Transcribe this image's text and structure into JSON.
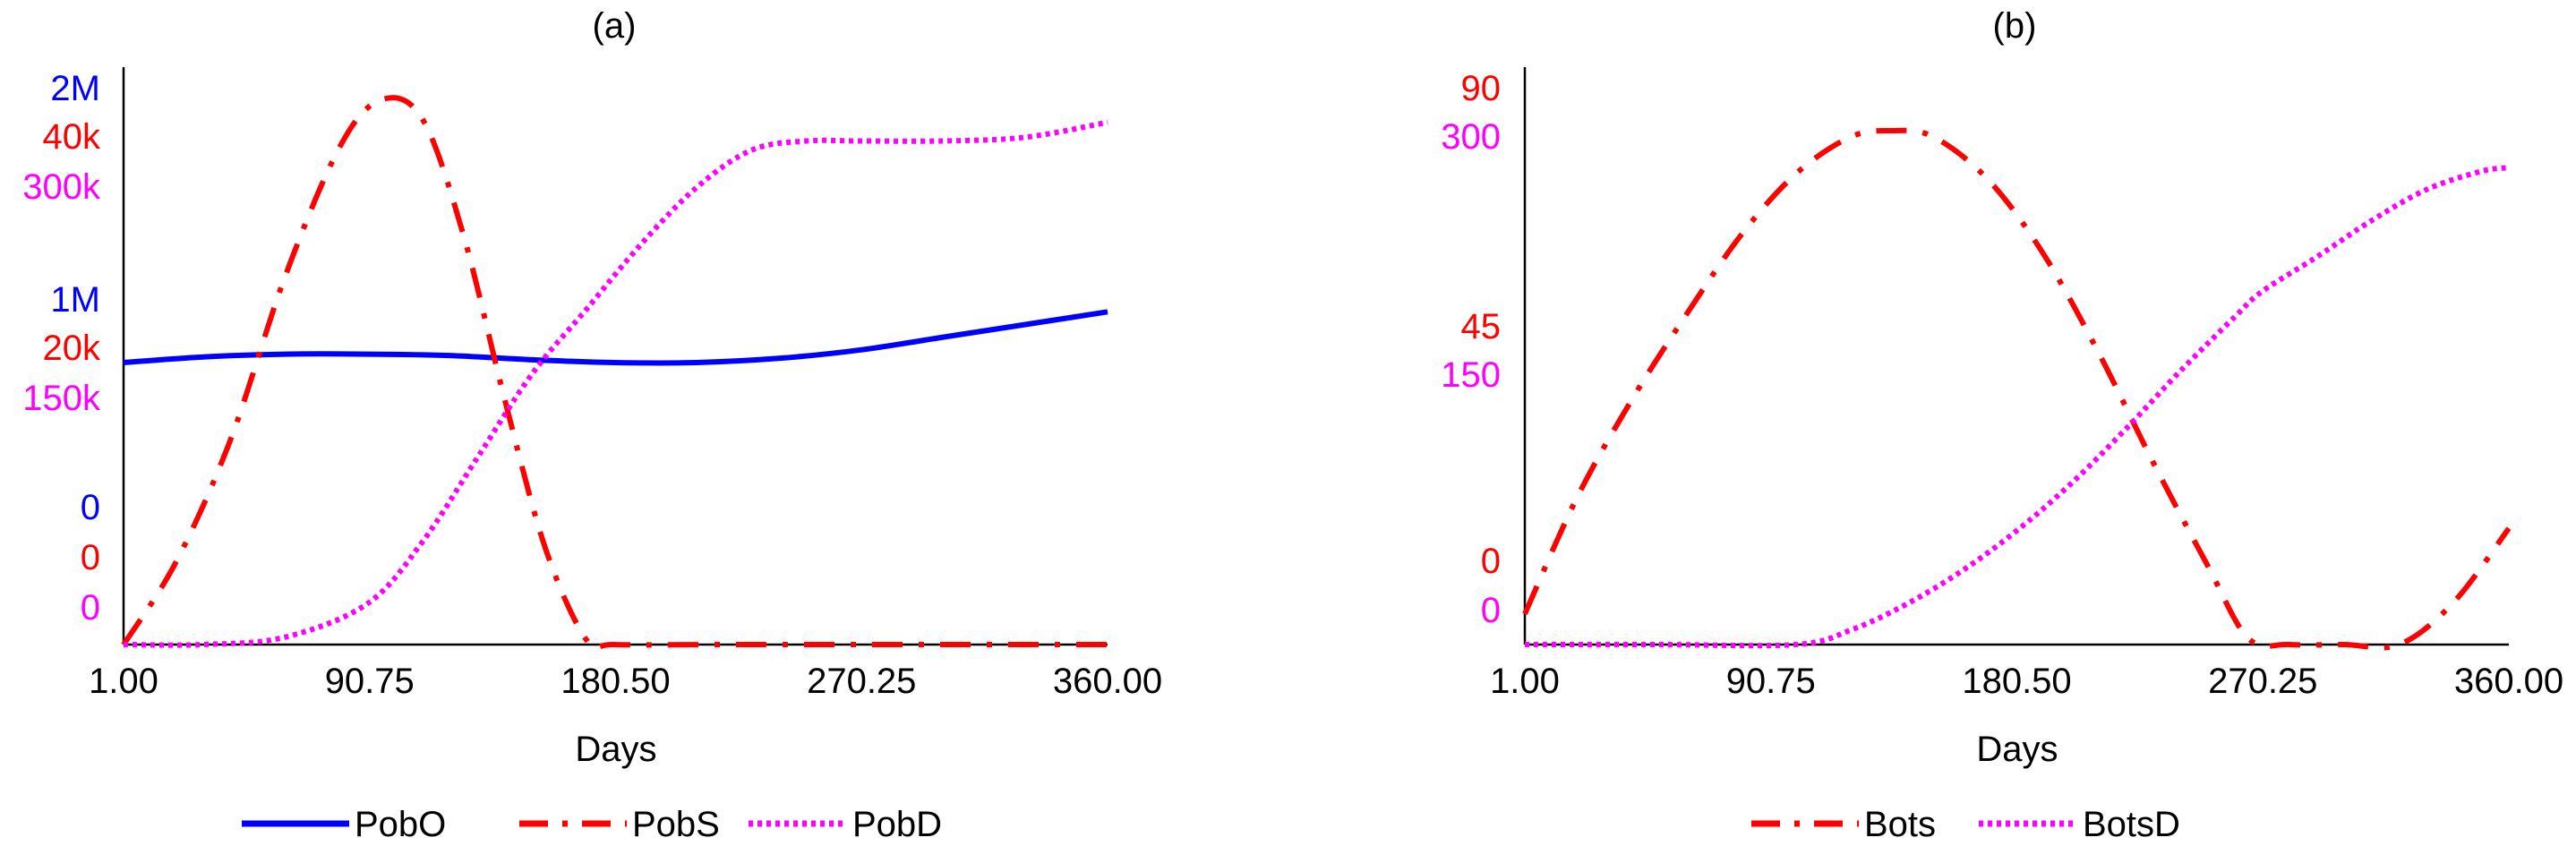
{
  "chart_data": [
    {
      "type": "line",
      "title": "(a)",
      "xlabel": "Days",
      "x_ticks": [
        "1.00",
        "90.75",
        "180.50",
        "270.25",
        "360.00"
      ],
      "xlim": [
        1,
        360
      ],
      "y_axes": [
        {
          "color": "#0000ff",
          "tick_labels": [
            "0",
            "1M",
            "2M"
          ],
          "ylim": [
            0,
            2000000
          ]
        },
        {
          "color": "#ff0000",
          "tick_labels": [
            "0",
            "20k",
            "40k"
          ],
          "ylim": [
            0,
            40000
          ]
        },
        {
          "color": "#ff00ff",
          "tick_labels": [
            "0",
            "150k",
            "300k"
          ],
          "ylim": [
            0,
            300000
          ]
        }
      ],
      "series": [
        {
          "name": "PobO",
          "color": "#0000ff",
          "dash": "solid",
          "axis": 0,
          "x": [
            1,
            30,
            60,
            90,
            120,
            150,
            180,
            210,
            240,
            270,
            300,
            330,
            360
          ],
          "y": [
            1000000,
            1020000,
            1030000,
            1030000,
            1025000,
            1010000,
            1000000,
            1000000,
            1015000,
            1045000,
            1090000,
            1135000,
            1180000
          ]
        },
        {
          "name": "PobS",
          "color": "#ff0000",
          "dash": "dashdot",
          "axis": 1,
          "x": [
            1,
            20,
            40,
            60,
            80,
            95,
            110,
            125,
            140,
            155,
            170,
            180,
            220,
            270,
            320,
            360
          ],
          "y": [
            0,
            6000,
            15000,
            27000,
            36500,
            39900,
            38500,
            30000,
            18000,
            7000,
            300,
            0,
            0,
            0,
            0,
            0
          ]
        },
        {
          "name": "PobD",
          "color": "#ff00ff",
          "dash": "dotted",
          "axis": 2,
          "x": [
            1,
            30,
            60,
            90,
            110,
            130,
            150,
            170,
            190,
            210,
            230,
            250,
            270,
            300,
            330,
            360
          ],
          "y": [
            0,
            0,
            4000,
            22000,
            55000,
            100000,
            145000,
            180000,
            215000,
            245000,
            265000,
            270000,
            270000,
            270000,
            272000,
            280000
          ]
        }
      ]
    },
    {
      "type": "line",
      "title": "(b)",
      "xlabel": "Days",
      "x_ticks": [
        "1.00",
        "90.75",
        "180.50",
        "270.25",
        "360.00"
      ],
      "xlim": [
        1,
        360
      ],
      "y_axes": [
        {
          "color": "#ff0000",
          "tick_labels": [
            "0",
            "45",
            "90"
          ],
          "ylim": [
            0,
            90
          ]
        },
        {
          "color": "#ff00ff",
          "tick_labels": [
            "0",
            "150",
            "300"
          ],
          "ylim": [
            0,
            300
          ]
        }
      ],
      "series": [
        {
          "name": "Bots",
          "color": "#ff0000",
          "dash": "dashdot",
          "axis": 0,
          "x": [
            1,
            20,
            40,
            60,
            80,
            100,
            120,
            135,
            150,
            170,
            190,
            210,
            230,
            250,
            265,
            280,
            300,
            320,
            340,
            360
          ],
          "y": [
            5,
            24,
            40,
            54,
            67,
            77,
            83,
            84,
            83,
            76,
            64,
            48,
            30,
            13,
            1,
            0,
            0,
            0,
            7,
            19
          ]
        },
        {
          "name": "BotsD",
          "color": "#ff00ff",
          "dash": "dotted",
          "axis": 1,
          "x": [
            1,
            50,
            100,
            120,
            140,
            160,
            180,
            200,
            220,
            240,
            260,
            270,
            290,
            310,
            330,
            350,
            360
          ],
          "y": [
            0,
            0,
            0,
            8,
            22,
            40,
            62,
            88,
            118,
            150,
            180,
            194,
            213,
            233,
            250,
            260,
            262
          ]
        }
      ]
    }
  ]
}
